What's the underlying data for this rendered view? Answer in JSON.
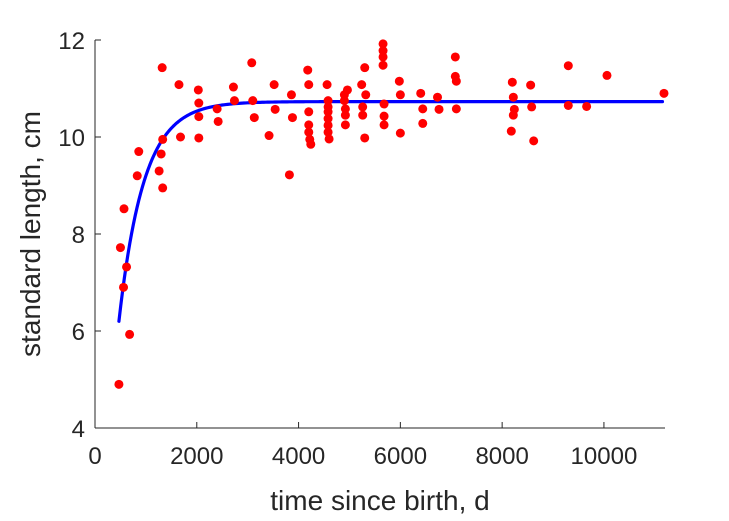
{
  "chart_data": {
    "type": "scatter",
    "xlabel": "time since birth, d",
    "ylabel": "standard length, cm",
    "xlim": [
      0,
      11200
    ],
    "ylim": [
      4,
      12
    ],
    "xticks": [
      0,
      2000,
      4000,
      6000,
      8000,
      10000
    ],
    "yticks": [
      4,
      6,
      8,
      10,
      12
    ],
    "grid": false,
    "series": [
      {
        "kind": "points",
        "color": "#ff0000",
        "points": [
          [
            470,
            4.9
          ],
          [
            500,
            7.72
          ],
          [
            560,
            6.9
          ],
          [
            570,
            8.52
          ],
          [
            620,
            7.32
          ],
          [
            680,
            5.93
          ],
          [
            830,
            9.2
          ],
          [
            860,
            9.7
          ],
          [
            1260,
            9.3
          ],
          [
            1300,
            9.65
          ],
          [
            1320,
            11.43
          ],
          [
            1330,
            9.95
          ],
          [
            1330,
            8.95
          ],
          [
            1650,
            11.08
          ],
          [
            1680,
            10.0
          ],
          [
            2030,
            10.97
          ],
          [
            2040,
            10.7
          ],
          [
            2040,
            10.42
          ],
          [
            2040,
            9.98
          ],
          [
            2400,
            10.58
          ],
          [
            2420,
            10.32
          ],
          [
            2720,
            11.03
          ],
          [
            2740,
            10.75
          ],
          [
            3080,
            11.53
          ],
          [
            3100,
            10.75
          ],
          [
            3130,
            10.4
          ],
          [
            3420,
            10.03
          ],
          [
            3520,
            11.08
          ],
          [
            3540,
            10.57
          ],
          [
            3820,
            9.22
          ],
          [
            3860,
            10.87
          ],
          [
            3880,
            10.4
          ],
          [
            4180,
            11.38
          ],
          [
            4200,
            11.08
          ],
          [
            4200,
            10.52
          ],
          [
            4200,
            10.25
          ],
          [
            4200,
            10.1
          ],
          [
            4220,
            9.95
          ],
          [
            4240,
            9.85
          ],
          [
            4560,
            11.08
          ],
          [
            4580,
            10.75
          ],
          [
            4580,
            10.62
          ],
          [
            4580,
            10.52
          ],
          [
            4580,
            10.38
          ],
          [
            4580,
            10.24
          ],
          [
            4580,
            10.1
          ],
          [
            4600,
            9.96
          ],
          [
            4900,
            10.87
          ],
          [
            4900,
            10.75
          ],
          [
            4920,
            10.58
          ],
          [
            4920,
            10.45
          ],
          [
            4920,
            10.25
          ],
          [
            4960,
            10.97
          ],
          [
            5240,
            11.08
          ],
          [
            5260,
            10.62
          ],
          [
            5260,
            10.45
          ],
          [
            5300,
            11.43
          ],
          [
            5300,
            9.98
          ],
          [
            5320,
            10.87
          ],
          [
            5660,
            11.92
          ],
          [
            5660,
            11.78
          ],
          [
            5660,
            11.65
          ],
          [
            5660,
            11.48
          ],
          [
            5680,
            10.68
          ],
          [
            5680,
            10.43
          ],
          [
            5680,
            10.25
          ],
          [
            5980,
            11.15
          ],
          [
            6000,
            10.87
          ],
          [
            6000,
            10.08
          ],
          [
            6400,
            10.9
          ],
          [
            6440,
            10.58
          ],
          [
            6440,
            10.28
          ],
          [
            6730,
            10.82
          ],
          [
            6760,
            10.57
          ],
          [
            7080,
            11.65
          ],
          [
            7080,
            11.25
          ],
          [
            7100,
            11.15
          ],
          [
            7100,
            10.58
          ],
          [
            8180,
            10.12
          ],
          [
            8200,
            11.13
          ],
          [
            8220,
            10.82
          ],
          [
            8220,
            10.45
          ],
          [
            8240,
            10.57
          ],
          [
            8560,
            11.07
          ],
          [
            8580,
            10.62
          ],
          [
            8620,
            9.92
          ],
          [
            9300,
            11.47
          ],
          [
            9300,
            10.65
          ],
          [
            9660,
            10.63
          ],
          [
            10060,
            11.27
          ],
          [
            11180,
            10.9
          ]
        ]
      },
      {
        "kind": "fit-line",
        "color": "#0000ff",
        "model": "von Bertalanffy",
        "Linf": 10.73,
        "L0": 6.2,
        "t0": 470,
        "k": 0.00205,
        "x_range": [
          470,
          11150
        ]
      }
    ]
  }
}
